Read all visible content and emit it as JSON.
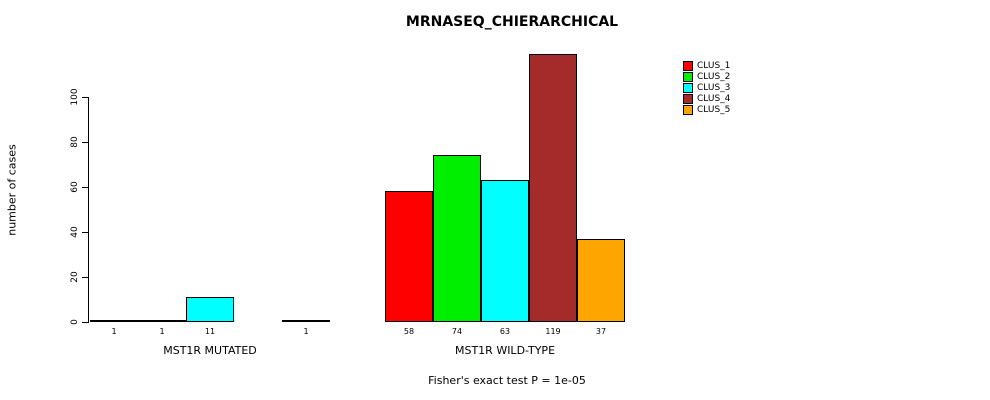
{
  "title": "MRNASEQ_CHIERARCHICAL",
  "subtitle": "Fisher's exact test P = 1e-05",
  "chart_data": {
    "type": "bar",
    "title": "MRNASEQ_CHIERARCHICAL",
    "ylabel": "number of cases",
    "xlabel": "",
    "ylim": [
      0,
      120
    ],
    "grid": false,
    "legend_position": "right",
    "ytick_values": [
      0,
      20,
      40,
      60,
      80,
      100
    ],
    "ytick_labels": [
      "0",
      "20",
      "40",
      "60",
      "80",
      "100"
    ],
    "categories": [
      "MST1R MUTATED",
      "MST1R WILD-TYPE"
    ],
    "series": [
      {
        "name": "CLUS_1",
        "color": "#FF0000",
        "values": [
          1,
          58
        ]
      },
      {
        "name": "CLUS_2",
        "color": "#00EE00",
        "values": [
          1,
          74
        ]
      },
      {
        "name": "CLUS_3",
        "color": "#00FFFF",
        "values": [
          11,
          63
        ]
      },
      {
        "name": "CLUS_4",
        "color": "#A52A2A",
        "values": [
          0,
          119
        ]
      },
      {
        "name": "CLUS_5",
        "color": "#FFA500",
        "values": [
          1,
          37
        ]
      }
    ],
    "bar_value_labels": [
      [
        "1",
        "1",
        "11",
        "",
        "1"
      ],
      [
        "58",
        "74",
        "63",
        "119",
        "37"
      ]
    ],
    "annotation": "Fisher's exact test P = 1e-05"
  },
  "legend": {
    "items": [
      {
        "label": "CLUS_1",
        "color": "#FF0000"
      },
      {
        "label": "CLUS_2",
        "color": "#00EE00"
      },
      {
        "label": "CLUS_3",
        "color": "#00FFFF"
      },
      {
        "label": "CLUS_4",
        "color": "#A52A2A"
      },
      {
        "label": "CLUS_5",
        "color": "#FFA500"
      }
    ]
  }
}
